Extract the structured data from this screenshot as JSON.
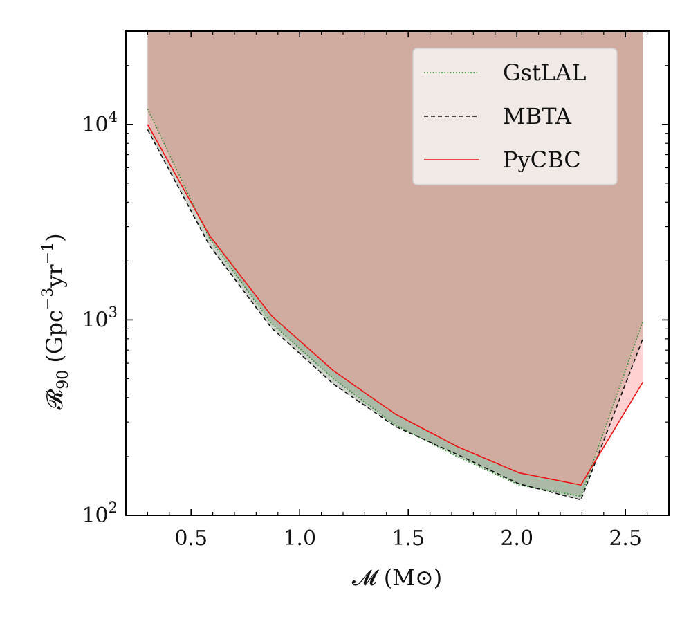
{
  "chart_data": {
    "type": "line",
    "xlabel": "𝓜 (M⊙)",
    "ylabel": "𝓡90 (Gpc−3yr−1)",
    "ylabel_parts": {
      "main": "𝓡",
      "sub": "90",
      "units_a": " (Gpc",
      "sup_a": "−3",
      "units_b": "yr",
      "sup_b": "−1",
      "units_c": ")"
    },
    "xlim": [
      0.2,
      2.7
    ],
    "ylim": [
      100,
      30000
    ],
    "yscale": "log",
    "xticks": [
      {
        "value": 0.5,
        "label": "0.5"
      },
      {
        "value": 1.0,
        "label": "1.0"
      },
      {
        "value": 1.5,
        "label": "1.5"
      },
      {
        "value": 2.0,
        "label": "2.0"
      },
      {
        "value": 2.5,
        "label": "2.5"
      }
    ],
    "yticks": [
      {
        "value": 100,
        "base": "10",
        "exp": "2"
      },
      {
        "value": 1000,
        "base": "10",
        "exp": "3"
      },
      {
        "value": 10000,
        "base": "10",
        "exp": "4"
      }
    ],
    "grid": false,
    "legend_position": "top-right",
    "x": [
      0.3,
      0.585,
      0.87,
      1.155,
      1.44,
      1.725,
      2.01,
      2.295,
      2.58
    ],
    "series": [
      {
        "name": "GstLAL",
        "line_style": "dotted",
        "color": "#2a8a2a",
        "fill_color": "#7aa377",
        "values": [
          12000,
          2600,
          960,
          500,
          290,
          200,
          143,
          125,
          980
        ]
      },
      {
        "name": "MBTA",
        "line_style": "dashed",
        "color": "#111111",
        "fill_color": "#8c9a86",
        "values": [
          9400,
          2400,
          910,
          470,
          285,
          205,
          145,
          120,
          800
        ]
      },
      {
        "name": "PyCBC",
        "line_style": "solid",
        "color": "#ee1111",
        "fill_color": "#ff9a9a",
        "values": [
          10000,
          2700,
          1050,
          550,
          330,
          225,
          165,
          143,
          480
        ]
      }
    ]
  }
}
